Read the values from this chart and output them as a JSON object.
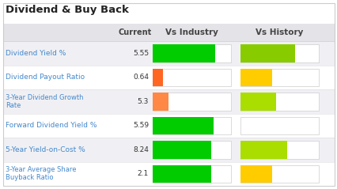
{
  "title": "Dividend & Buy Back",
  "title_color": "#222222",
  "title_fontsize": 9.5,
  "header_bg": "#e4e4e8",
  "row_bg_even": "#f0f0f4",
  "row_bg_odd": "#ffffff",
  "col_headers": [
    "",
    "Current",
    "Vs Industry",
    "Vs History"
  ],
  "col_header_color": "#444444",
  "rows": [
    {
      "label": "Dividend Yield %",
      "value": "5.55",
      "vs_industry": {
        "fill": 0.8,
        "color": "#00cc00"
      },
      "vs_history": {
        "fill": 0.7,
        "color": "#88cc00"
      }
    },
    {
      "label": "Dividend Payout Ratio",
      "value": "0.64",
      "vs_industry": {
        "fill": 0.13,
        "color": "#ff6622"
      },
      "vs_history": {
        "fill": 0.4,
        "color": "#ffcc00"
      }
    },
    {
      "label": "3-Year Dividend Growth\nRate",
      "value": "5.3",
      "vs_industry": {
        "fill": 0.2,
        "color": "#ff8844"
      },
      "vs_history": {
        "fill": 0.45,
        "color": "#aadd00"
      }
    },
    {
      "label": "Forward Dividend Yield %",
      "value": "5.59",
      "vs_industry": {
        "fill": 0.78,
        "color": "#00cc00"
      },
      "vs_history": {
        "fill": 0.0,
        "color": "#ffffff"
      }
    },
    {
      "label": "5-Year Yield-on-Cost %",
      "value": "8.24",
      "vs_industry": {
        "fill": 0.75,
        "color": "#00cc00"
      },
      "vs_history": {
        "fill": 0.6,
        "color": "#aadd00"
      }
    },
    {
      "label": "3-Year Average Share\nBuyback Ratio",
      "value": "2.1",
      "vs_industry": {
        "fill": 0.75,
        "color": "#00cc00"
      },
      "vs_history": {
        "fill": 0.4,
        "color": "#ffcc00"
      }
    }
  ],
  "label_color": "#4488cc",
  "value_color": "#333333",
  "bar_bg_color": "#ffffff",
  "bar_border_color": "#cccccc",
  "bg_color": "#ffffff",
  "outer_border_color": "#cccccc"
}
